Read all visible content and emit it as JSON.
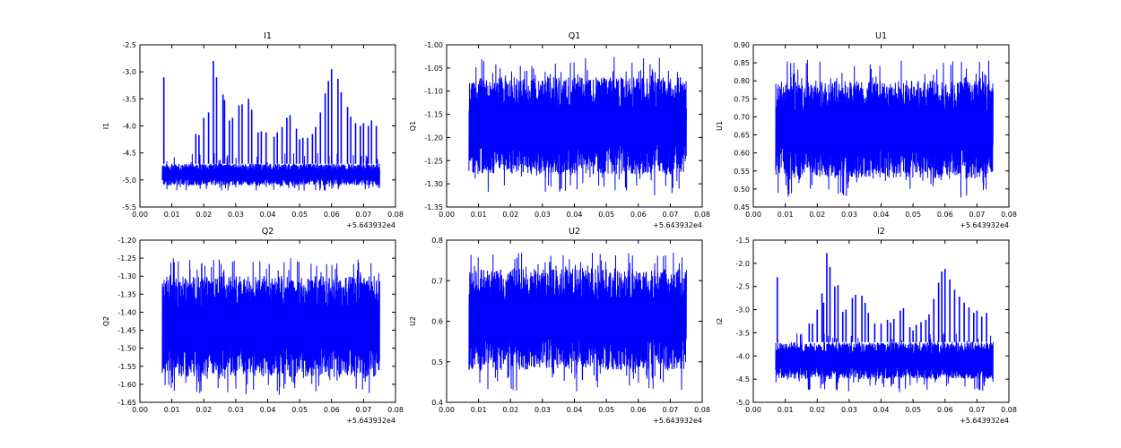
{
  "chart_data": [
    {
      "type": "line",
      "title": "I1",
      "ylabel": "I1",
      "xlabel": "",
      "x_offset_label": "+5.643932e4",
      "xlim": [
        0,
        0.08
      ],
      "xticks": [
        "0.00",
        "0.01",
        "0.02",
        "0.03",
        "0.04",
        "0.05",
        "0.06",
        "0.07",
        "0.08"
      ],
      "ylim": [
        -5.5,
        -2.5
      ],
      "yticks": [
        "-5.5",
        "-5.0",
        "-4.5",
        "-4.0",
        "-3.5",
        "-3.0",
        "-2.5"
      ],
      "x_range": [
        0.007,
        0.075
      ],
      "noise_band": [
        -5.1,
        -4.7
      ],
      "noise_extremes": [
        -5.2,
        -4.5
      ],
      "color": "#0000ff",
      "spikes": [
        [
          0.0075,
          -3.1
        ],
        [
          0.0175,
          -4.15
        ],
        [
          0.0185,
          -4.17
        ],
        [
          0.02,
          -3.85
        ],
        [
          0.0215,
          -3.75
        ],
        [
          0.023,
          -2.8
        ],
        [
          0.024,
          -3.1
        ],
        [
          0.026,
          -3.42
        ],
        [
          0.0265,
          -3.52
        ],
        [
          0.028,
          -3.9
        ],
        [
          0.029,
          -3.85
        ],
        [
          0.031,
          -3.62
        ],
        [
          0.032,
          -3.6
        ],
        [
          0.034,
          -3.5
        ],
        [
          0.035,
          -3.7
        ],
        [
          0.037,
          -4.12
        ],
        [
          0.038,
          -4.1
        ],
        [
          0.0395,
          -4.12
        ],
        [
          0.042,
          -4.2
        ],
        [
          0.043,
          -4.12
        ],
        [
          0.0445,
          -4.02
        ],
        [
          0.046,
          -3.85
        ],
        [
          0.047,
          -3.8
        ],
        [
          0.049,
          -4.05
        ],
        [
          0.05,
          -4.25
        ],
        [
          0.051,
          -4.22
        ],
        [
          0.0525,
          -4.22
        ],
        [
          0.054,
          -4.15
        ],
        [
          0.055,
          -4.02
        ],
        [
          0.0565,
          -3.75
        ],
        [
          0.058,
          -3.4
        ],
        [
          0.059,
          -3.17
        ],
        [
          0.06,
          -2.95
        ],
        [
          0.062,
          -3.13
        ],
        [
          0.063,
          -3.38
        ],
        [
          0.065,
          -3.65
        ],
        [
          0.066,
          -3.83
        ],
        [
          0.0675,
          -3.95
        ],
        [
          0.069,
          -4.0
        ],
        [
          0.07,
          -3.95
        ],
        [
          0.0715,
          -4.0
        ],
        [
          0.0725,
          -3.9
        ],
        [
          0.074,
          -4.0
        ]
      ]
    },
    {
      "type": "line",
      "title": "Q1",
      "ylabel": "Q1",
      "xlabel": "",
      "x_offset_label": "+5.643932e4",
      "xlim": [
        0,
        0.08
      ],
      "xticks": [
        "0.00",
        "0.01",
        "0.02",
        "0.03",
        "0.04",
        "0.05",
        "0.06",
        "0.07",
        "0.08"
      ],
      "ylim": [
        -1.35,
        -1.0
      ],
      "yticks": [
        "-1.35",
        "-1.30",
        "-1.25",
        "-1.20",
        "-1.15",
        "-1.10",
        "-1.05",
        "-1.00"
      ],
      "x_range": [
        0.007,
        0.075
      ],
      "noise_band": [
        -1.28,
        -1.07
      ],
      "noise_extremes": [
        -1.325,
        -1.025
      ],
      "color": "#0000ff",
      "spikes": []
    },
    {
      "type": "line",
      "title": "U1",
      "ylabel": "U1",
      "xlabel": "",
      "x_offset_label": "+5.643932e4",
      "xlim": [
        0,
        0.08
      ],
      "xticks": [
        "0.00",
        "0.01",
        "0.02",
        "0.03",
        "0.04",
        "0.05",
        "0.06",
        "0.07",
        "0.08"
      ],
      "ylim": [
        0.45,
        0.9
      ],
      "yticks": [
        "0.45",
        "0.50",
        "0.55",
        "0.60",
        "0.65",
        "0.70",
        "0.75",
        "0.80",
        "0.85",
        "0.90"
      ],
      "x_range": [
        0.007,
        0.075
      ],
      "noise_band": [
        0.53,
        0.8
      ],
      "noise_extremes": [
        0.475,
        0.86
      ],
      "color": "#0000ff",
      "spikes": []
    },
    {
      "type": "line",
      "title": "Q2",
      "ylabel": "Q2",
      "xlabel": "",
      "x_offset_label": "+5.643932e4",
      "xlim": [
        0,
        0.08
      ],
      "xticks": [
        "0.00",
        "0.01",
        "0.02",
        "0.03",
        "0.04",
        "0.05",
        "0.06",
        "0.07",
        "0.08"
      ],
      "ylim": [
        -1.65,
        -1.2
      ],
      "yticks": [
        "-1.65",
        "-1.60",
        "-1.55",
        "-1.50",
        "-1.45",
        "-1.40",
        "-1.35",
        "-1.30",
        "-1.25",
        "-1.20"
      ],
      "x_range": [
        0.007,
        0.075
      ],
      "noise_band": [
        -1.58,
        -1.3
      ],
      "noise_extremes": [
        -1.63,
        -1.25
      ],
      "color": "#0000ff",
      "spikes": []
    },
    {
      "type": "line",
      "title": "U2",
      "ylabel": "U2",
      "xlabel": "",
      "x_offset_label": "+5.643932e4",
      "xlim": [
        0,
        0.08
      ],
      "xticks": [
        "0.00",
        "0.01",
        "0.02",
        "0.03",
        "0.04",
        "0.05",
        "0.06",
        "0.07",
        "0.08"
      ],
      "ylim": [
        0.4,
        0.85
      ],
      "yticks": [
        "0.4",
        "0.5",
        "0.6",
        "0.7",
        "0.8"
      ],
      "x_range": [
        0.007,
        0.075
      ],
      "noise_band": [
        0.49,
        0.77
      ],
      "noise_extremes": [
        0.43,
        0.815
      ],
      "color": "#0000ff",
      "spikes": []
    },
    {
      "type": "line",
      "title": "I2",
      "ylabel": "I2",
      "xlabel": "",
      "x_offset_label": "+5.643932e4",
      "xlim": [
        0,
        0.08
      ],
      "xticks": [
        "0.00",
        "0.01",
        "0.02",
        "0.03",
        "0.04",
        "0.05",
        "0.06",
        "0.07",
        "0.08"
      ],
      "ylim": [
        -5.0,
        -1.5
      ],
      "yticks": [
        "-5.0",
        "-4.5",
        "-4.0",
        "-3.5",
        "-3.0",
        "-2.5",
        "-2.0",
        "-1.5"
      ],
      "x_range": [
        0.007,
        0.075
      ],
      "noise_band": [
        -4.5,
        -3.7
      ],
      "noise_extremes": [
        -4.78,
        -3.5
      ],
      "color": "#0000ff",
      "spikes": [
        [
          0.0075,
          -2.3
        ],
        [
          0.0175,
          -3.3
        ],
        [
          0.0185,
          -3.3
        ],
        [
          0.02,
          -3.0
        ],
        [
          0.0215,
          -2.65
        ],
        [
          0.022,
          -2.85
        ],
        [
          0.023,
          -1.78
        ],
        [
          0.024,
          -2.08
        ],
        [
          0.0255,
          -2.5
        ],
        [
          0.0265,
          -2.47
        ],
        [
          0.028,
          -3.05
        ],
        [
          0.029,
          -3.0
        ],
        [
          0.031,
          -2.75
        ],
        [
          0.032,
          -2.68
        ],
        [
          0.034,
          -2.7
        ],
        [
          0.035,
          -2.85
        ],
        [
          0.036,
          -3.07
        ],
        [
          0.038,
          -3.3
        ],
        [
          0.04,
          -3.3
        ],
        [
          0.042,
          -3.22
        ],
        [
          0.043,
          -3.28
        ],
        [
          0.044,
          -3.2
        ],
        [
          0.046,
          -3.02
        ],
        [
          0.047,
          -2.97
        ],
        [
          0.049,
          -3.38
        ],
        [
          0.05,
          -3.45
        ],
        [
          0.051,
          -3.33
        ],
        [
          0.0525,
          -3.27
        ],
        [
          0.054,
          -3.22
        ],
        [
          0.055,
          -3.1
        ],
        [
          0.0565,
          -2.77
        ],
        [
          0.058,
          -2.42
        ],
        [
          0.059,
          -2.18
        ],
        [
          0.06,
          -2.12
        ],
        [
          0.0615,
          -2.35
        ],
        [
          0.063,
          -2.57
        ],
        [
          0.0645,
          -2.72
        ],
        [
          0.066,
          -2.85
        ],
        [
          0.0675,
          -2.95
        ],
        [
          0.069,
          -3.07
        ],
        [
          0.07,
          -3.02
        ],
        [
          0.0715,
          -3.15
        ],
        [
          0.073,
          -3.07
        ]
      ]
    }
  ]
}
